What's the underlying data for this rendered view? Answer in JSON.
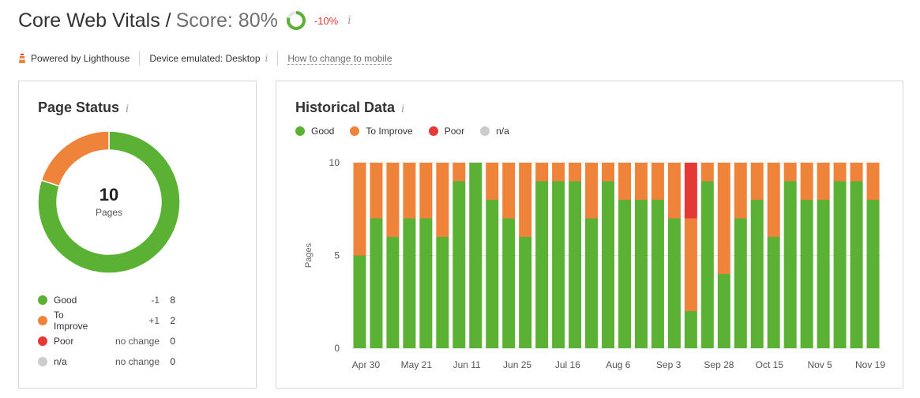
{
  "header": {
    "title": "Core Web Vitals /",
    "score": "Score: 80%",
    "delta": "-10%",
    "score_value": 0.8
  },
  "subheader": {
    "powered": "Powered by Lighthouse",
    "device": "Device emulated: Desktop",
    "link": "How to change to mobile"
  },
  "status_card": {
    "title": "Page Status",
    "total": "10",
    "total_label": "Pages",
    "rows": [
      {
        "name": "Good",
        "delta": "-1",
        "value": "8",
        "color": "#5bb133"
      },
      {
        "name": "To Improve",
        "delta": "+1",
        "value": "2",
        "color": "#f0833a"
      },
      {
        "name": "Poor",
        "delta": "no change",
        "value": "0",
        "color": "#e53935"
      },
      {
        "name": "n/a",
        "delta": "no change",
        "value": "0",
        "color": "#cccccc"
      }
    ]
  },
  "history_card": {
    "title": "Historical Data",
    "legend": [
      {
        "name": "Good",
        "color": "#5bb133"
      },
      {
        "name": "To Improve",
        "color": "#f0833a"
      },
      {
        "name": "Poor",
        "color": "#e53935"
      },
      {
        "name": "n/a",
        "color": "#cccccc"
      }
    ]
  },
  "chart_data": {
    "type": "bar",
    "stacked": true,
    "ylabel": "Pages",
    "ylim": [
      0,
      10
    ],
    "yticks": [
      0,
      5,
      10
    ],
    "xtick_labels": [
      "Apr 30",
      "May 21",
      "Jun 11",
      "Jun 25",
      "Jul 16",
      "Aug 6",
      "Sep 3",
      "Sep 28",
      "Oct 15",
      "Nov 5",
      "Nov 19"
    ],
    "series": [
      {
        "name": "Good",
        "color": "#5bb133",
        "values": [
          5,
          7,
          6,
          7,
          7,
          6,
          9,
          10,
          8,
          7,
          6,
          9,
          9,
          9,
          7,
          9,
          8,
          8,
          8,
          7,
          2,
          9,
          4,
          7,
          8,
          6,
          9,
          8,
          8,
          9,
          9,
          8
        ]
      },
      {
        "name": "To Improve",
        "color": "#f0833a",
        "values": [
          5,
          3,
          4,
          3,
          3,
          4,
          1,
          0,
          2,
          3,
          4,
          1,
          1,
          1,
          3,
          1,
          2,
          2,
          2,
          3,
          5,
          1,
          6,
          3,
          2,
          4,
          1,
          2,
          2,
          1,
          1,
          2
        ]
      },
      {
        "name": "Poor",
        "color": "#e53935",
        "values": [
          0,
          0,
          0,
          0,
          0,
          0,
          0,
          0,
          0,
          0,
          0,
          0,
          0,
          0,
          0,
          0,
          0,
          0,
          0,
          0,
          3,
          0,
          0,
          0,
          0,
          0,
          0,
          0,
          0,
          0,
          0,
          0
        ]
      }
    ]
  }
}
